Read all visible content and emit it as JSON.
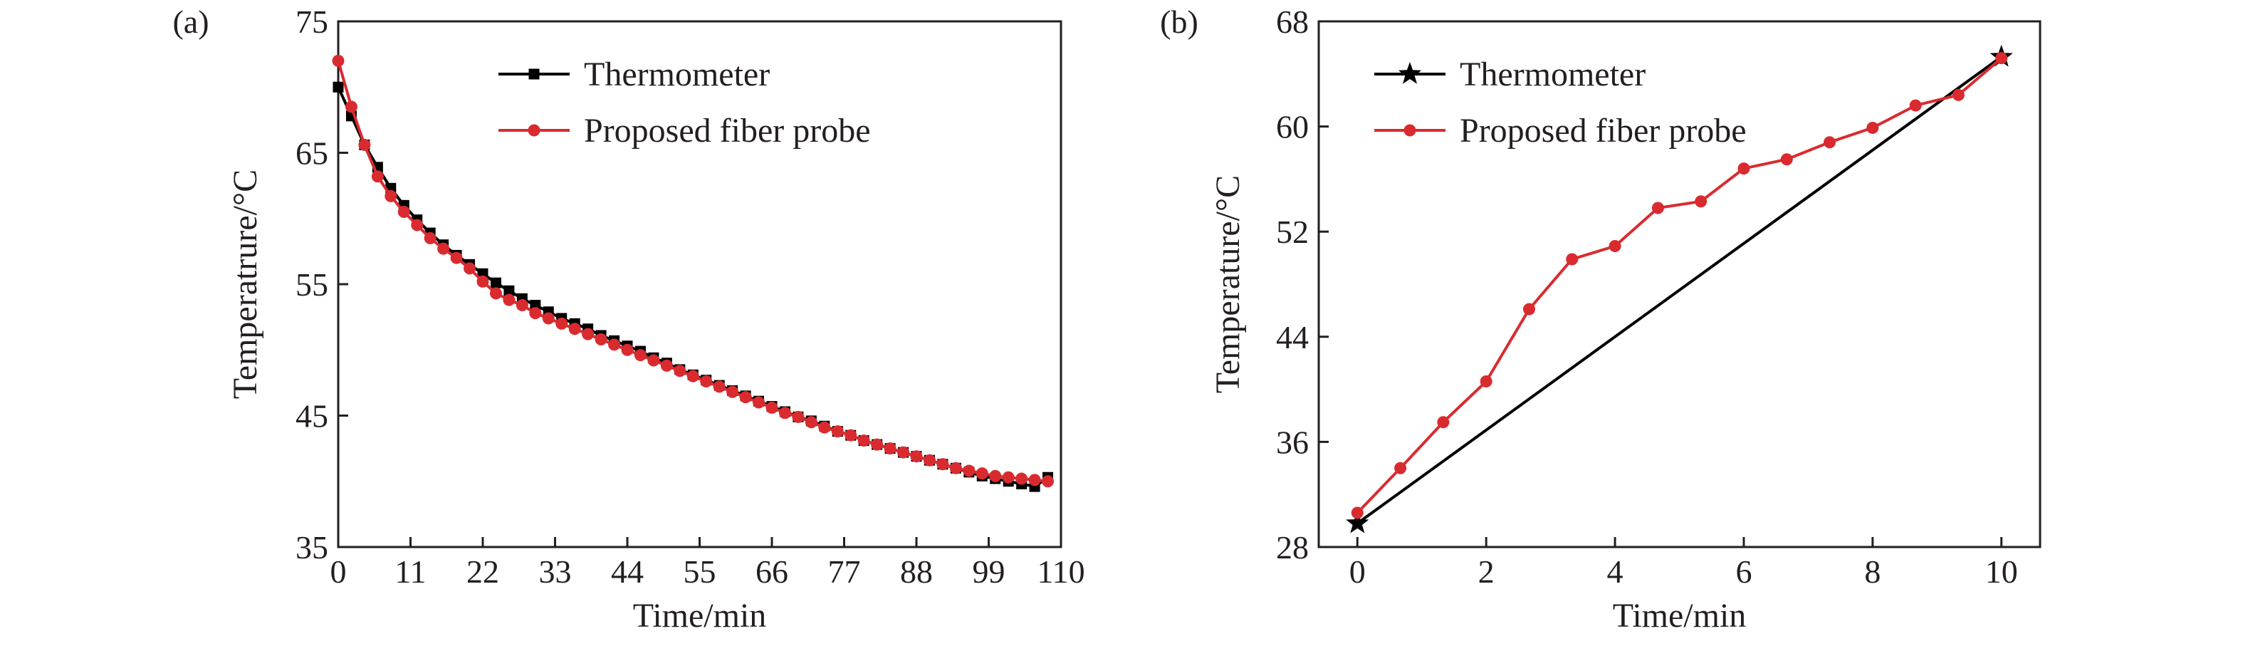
{
  "chart_data": [
    {
      "type": "line",
      "panel_label": "(a)",
      "xlabel": "Time/min",
      "ylabel": "Temperatrure/°C",
      "xlim": [
        0,
        110
      ],
      "ylim": [
        35,
        75
      ],
      "xticks": [
        "0",
        "11",
        "22",
        "33",
        "44",
        "55",
        "66",
        "77",
        "88",
        "99",
        "110"
      ],
      "yticks": [
        "35",
        "45",
        "55",
        "65",
        "75"
      ],
      "legend_position": "top-center",
      "series": [
        {
          "name": "Thermometer",
          "color": "#000000",
          "marker": "square",
          "x": [
            0,
            2,
            4,
            6,
            8,
            10,
            12,
            14,
            16,
            18,
            20,
            22,
            24,
            26,
            28,
            30,
            32,
            34,
            36,
            38,
            40,
            42,
            44,
            46,
            48,
            50,
            52,
            54,
            56,
            58,
            60,
            62,
            64,
            66,
            68,
            70,
            72,
            74,
            76,
            78,
            80,
            82,
            84,
            86,
            88,
            90,
            92,
            94,
            96,
            98,
            100,
            102,
            104,
            106,
            108
          ],
          "y": [
            70.0,
            67.8,
            65.6,
            63.9,
            62.3,
            61.0,
            59.9,
            58.9,
            58.0,
            57.2,
            56.5,
            55.8,
            55.1,
            54.5,
            53.9,
            53.4,
            52.9,
            52.4,
            52.0,
            51.6,
            51.1,
            50.7,
            50.3,
            49.9,
            49.4,
            49.0,
            48.5,
            48.1,
            47.7,
            47.3,
            46.9,
            46.5,
            46.1,
            45.7,
            45.3,
            44.9,
            44.6,
            44.2,
            43.8,
            43.5,
            43.1,
            42.8,
            42.5,
            42.2,
            41.9,
            41.6,
            41.3,
            41.0,
            40.7,
            40.4,
            40.2,
            40.0,
            39.8,
            39.6,
            40.3
          ]
        },
        {
          "name": "Proposed fiber probe",
          "color": "#d92b2f",
          "marker": "circle",
          "x": [
            0,
            2,
            4,
            6,
            8,
            10,
            12,
            14,
            16,
            18,
            20,
            22,
            24,
            26,
            28,
            30,
            32,
            34,
            36,
            38,
            40,
            42,
            44,
            46,
            48,
            50,
            52,
            54,
            56,
            58,
            60,
            62,
            64,
            66,
            68,
            70,
            72,
            74,
            76,
            78,
            80,
            82,
            84,
            86,
            88,
            90,
            92,
            94,
            96,
            98,
            100,
            102,
            104,
            106,
            108
          ],
          "y": [
            72.0,
            68.5,
            65.6,
            63.2,
            61.7,
            60.5,
            59.5,
            58.5,
            57.7,
            57.0,
            56.2,
            55.2,
            54.3,
            53.8,
            53.4,
            52.8,
            52.4,
            52.0,
            51.6,
            51.2,
            50.8,
            50.4,
            50.0,
            49.6,
            49.2,
            48.8,
            48.4,
            48.0,
            47.6,
            47.2,
            46.8,
            46.4,
            46.0,
            45.6,
            45.2,
            44.9,
            44.5,
            44.1,
            43.8,
            43.5,
            43.1,
            42.8,
            42.5,
            42.2,
            41.9,
            41.6,
            41.3,
            41.0,
            40.8,
            40.6,
            40.4,
            40.3,
            40.2,
            40.1,
            40.0
          ]
        }
      ]
    },
    {
      "type": "line",
      "panel_label": "(b)",
      "xlabel": "Time/min",
      "ylabel": "Temperature/°C",
      "xlim": [
        -0.6,
        10.6
      ],
      "ylim": [
        28,
        68
      ],
      "xticks": [
        "0",
        "2",
        "4",
        "6",
        "8",
        "10"
      ],
      "yticks": [
        "28",
        "36",
        "44",
        "52",
        "60",
        "68"
      ],
      "legend_position": "top-left",
      "series": [
        {
          "name": "Thermometer",
          "color": "#000000",
          "marker": "star",
          "x": [
            0,
            10
          ],
          "y": [
            29.8,
            65.3
          ]
        },
        {
          "name": "Proposed fiber probe",
          "color": "#d92b2f",
          "marker": "circle",
          "x": [
            0,
            0.667,
            1.333,
            2,
            2.667,
            3.333,
            4,
            4.667,
            5.333,
            6,
            6.667,
            7.333,
            8,
            8.667,
            9.333,
            10
          ],
          "y": [
            30.6,
            34.0,
            37.5,
            40.6,
            46.1,
            49.9,
            50.9,
            53.8,
            54.3,
            56.8,
            57.5,
            58.8,
            59.9,
            61.6,
            62.4,
            65.2
          ]
        }
      ]
    }
  ]
}
